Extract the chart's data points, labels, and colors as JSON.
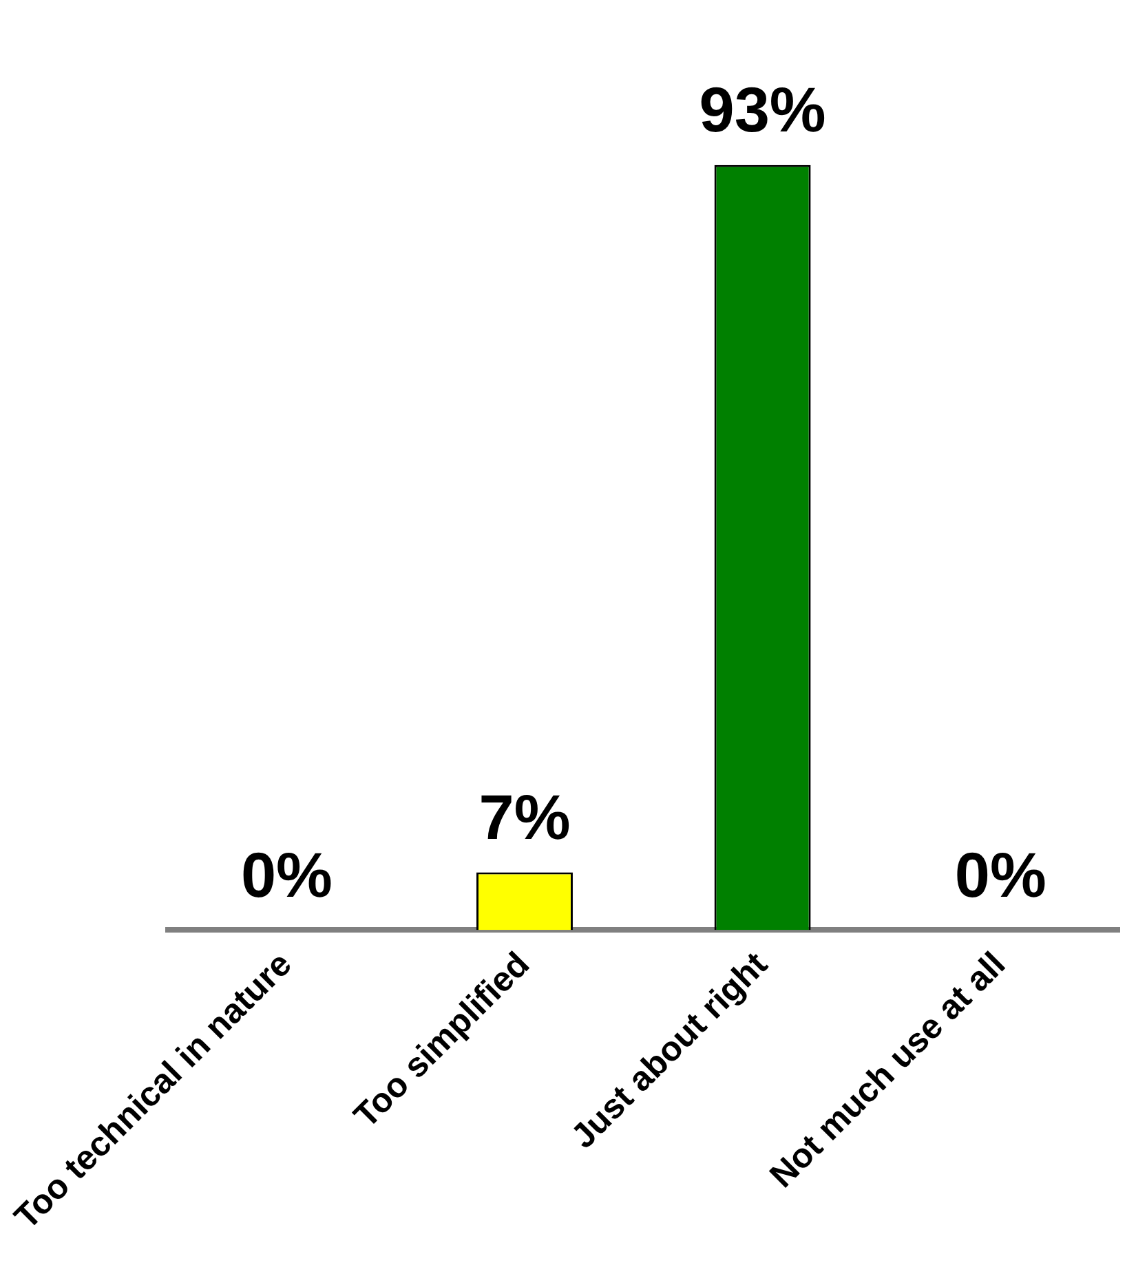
{
  "chart_data": {
    "type": "bar",
    "categories": [
      "Too technical in nature",
      "Too simplified",
      "Just about right",
      "Not much use at all"
    ],
    "values": [
      0,
      7,
      93,
      0
    ],
    "colors": [
      "#c00000",
      "#ffff00",
      "#008000",
      "#cc7a00"
    ],
    "value_labels": [
      "0%",
      "7%",
      "93%",
      "0%"
    ]
  }
}
